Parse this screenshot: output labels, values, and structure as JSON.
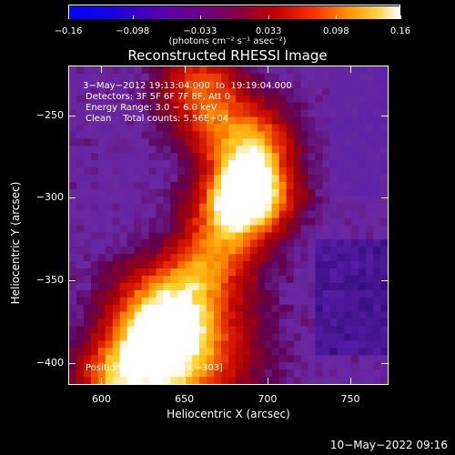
{
  "colorbar": {
    "ticks": [
      "−0.16",
      "−0.098",
      "−0.033",
      "0.033",
      "0.098",
      "0.16"
    ],
    "tick_values": [
      -0.16,
      -0.098,
      -0.033,
      0.033,
      0.098,
      0.16
    ],
    "range": [
      -0.16,
      0.16
    ],
    "unit": "(photons cm⁻² s⁻¹ asec⁻²)"
  },
  "title": "Reconstructed RHESSI Image",
  "info": {
    "line1": " 3−May−2012 19:13:04.000  to  19:19:04.000",
    "line2": "Detectors: 3F 5F 6F 7F 8F, Att 0",
    "line3": "Energy Range: 3.0 − 6.0 keV",
    "line4": "Clean    Total counts: 5.56E+04",
    "peak": "Position of Peak = [689,−303]"
  },
  "axes": {
    "xlabel": "Heliocentric X (arcsec)",
    "ylabel": "Heliocentric Y (arcsec)",
    "xticks": [
      "600",
      "650",
      "700",
      "750"
    ],
    "xtick_values": [
      600,
      650,
      700,
      750
    ],
    "yticks": [
      "−250",
      "−300",
      "−350",
      "−400"
    ],
    "ytick_values": [
      -250,
      -300,
      -350,
      -400
    ],
    "xlim": [
      580,
      773
    ],
    "ylim": [
      -413,
      -220
    ]
  },
  "timestamp": "10−May−2022 09:16",
  "colors": {
    "background": "#000000",
    "foreground": "#ffffff"
  }
}
